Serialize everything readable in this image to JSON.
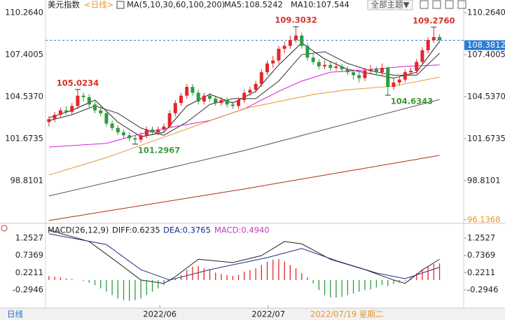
{
  "header": {
    "symbol": "美元指数",
    "period": "<日线>",
    "theme_button": "全部主题▼",
    "period_tab": "日线",
    "cursor_date": "2022/07/19 星期二"
  },
  "chart_data": [
    {
      "type": "candlestick",
      "up_color": "#e3262b",
      "down_color": "#2e9b3f",
      "legend_title": "MA(5,10,30,60,100,200)",
      "legend_values": [
        "MA5:108.5242",
        "MA10:107.544"
      ],
      "ylim": [
        95.94,
        110.65
      ],
      "yticks": [
        {
          "value": 110.264,
          "label": "110.2640"
        },
        107.4005,
        {
          "value": 104.537,
          "label": "104.5370"
        },
        101.6735,
        98.8101,
        {
          "value": 96.1368,
          "label": "96.1368",
          "color": "#e8952c"
        }
      ],
      "xlim": [
        -0.6,
        72.2
      ],
      "xticks": [
        {
          "value": 19.3,
          "label": "2022/06"
        },
        {
          "value": 38.2,
          "label": "2022/07"
        }
      ],
      "candles": [
        [
          102.8,
          103.2,
          102.5,
          103.0
        ],
        [
          103.0,
          103.5,
          102.8,
          103.3
        ],
        [
          103.3,
          103.8,
          103.1,
          103.6
        ],
        [
          103.6,
          103.9,
          103.3,
          103.5
        ],
        [
          103.5,
          104.1,
          103.3,
          103.9
        ],
        [
          103.9,
          105.0234,
          103.7,
          104.6
        ],
        [
          104.6,
          104.8,
          104.2,
          104.5
        ],
        [
          104.5,
          104.7,
          103.8,
          104.0
        ],
        [
          104.0,
          104.2,
          103.4,
          103.6
        ],
        [
          103.6,
          103.9,
          103.2,
          103.4
        ],
        [
          103.4,
          103.5,
          102.5,
          102.7
        ],
        [
          102.7,
          102.9,
          102.2,
          102.4
        ],
        [
          102.4,
          102.6,
          101.9,
          102.1
        ],
        [
          102.1,
          102.3,
          101.7,
          101.9
        ],
        [
          101.9,
          102.1,
          101.5,
          101.7
        ],
        [
          101.7,
          101.9,
          101.2967,
          101.6
        ],
        [
          101.6,
          102.1,
          101.4,
          101.9
        ],
        [
          101.9,
          102.5,
          101.7,
          102.3
        ],
        [
          102.3,
          102.5,
          101.9,
          102.1
        ],
        [
          102.1,
          102.5,
          101.9,
          102.3
        ],
        [
          102.3,
          102.7,
          102.1,
          102.5
        ],
        [
          102.5,
          103.6,
          102.4,
          103.4
        ],
        [
          103.4,
          104.3,
          103.2,
          104.1
        ],
        [
          104.1,
          104.8,
          103.9,
          104.6
        ],
        [
          104.6,
          105.4,
          104.4,
          105.2
        ],
        [
          105.2,
          105.4,
          104.6,
          104.8
        ],
        [
          104.8,
          105.0,
          104.0,
          104.2
        ],
        [
          104.2,
          104.8,
          104.0,
          104.6
        ],
        [
          104.6,
          104.8,
          104.2,
          104.4
        ],
        [
          104.4,
          104.6,
          103.9,
          104.1
        ],
        [
          104.1,
          104.5,
          103.9,
          104.3
        ],
        [
          104.3,
          104.5,
          103.8,
          104.0
        ],
        [
          104.0,
          104.2,
          103.7,
          103.9
        ],
        [
          103.9,
          104.5,
          103.7,
          104.3
        ],
        [
          104.3,
          105.0,
          104.1,
          104.8
        ],
        [
          104.8,
          105.2,
          104.6,
          105.0
        ],
        [
          105.0,
          105.6,
          104.8,
          105.4
        ],
        [
          105.4,
          106.4,
          105.2,
          106.2
        ],
        [
          106.2,
          107.0,
          106.0,
          106.8
        ],
        [
          106.8,
          107.3,
          106.5,
          107.0
        ],
        [
          107.0,
          108.0,
          106.8,
          107.8
        ],
        [
          107.8,
          108.3,
          107.5,
          108.0
        ],
        [
          108.0,
          108.7,
          107.8,
          108.4
        ],
        [
          108.4,
          109.3032,
          108.2,
          108.7
        ],
        [
          108.7,
          108.9,
          107.8,
          108.0
        ],
        [
          108.0,
          108.2,
          107.0,
          107.2
        ],
        [
          107.2,
          107.5,
          106.7,
          106.9
        ],
        [
          106.9,
          107.1,
          106.4,
          106.6
        ],
        [
          106.6,
          107.0,
          106.4,
          106.7
        ],
        [
          106.7,
          106.9,
          106.3,
          106.5
        ],
        [
          106.5,
          106.9,
          106.3,
          106.6
        ],
        [
          106.6,
          106.8,
          106.2,
          106.4
        ],
        [
          106.4,
          106.6,
          106.0,
          106.2
        ],
        [
          106.2,
          106.4,
          105.7,
          106.0
        ],
        [
          106.0,
          106.2,
          105.5,
          105.8
        ],
        [
          105.8,
          106.5,
          105.6,
          106.3
        ],
        [
          106.3,
          106.7,
          106.1,
          106.4
        ],
        [
          106.4,
          106.6,
          106.0,
          106.2
        ],
        [
          106.2,
          106.8,
          106.0,
          106.5
        ],
        [
          106.5,
          106.6,
          104.6343,
          105.2
        ],
        [
          105.2,
          105.8,
          105.0,
          105.5
        ],
        [
          105.5,
          105.9,
          105.3,
          105.7
        ],
        [
          105.7,
          106.4,
          105.5,
          106.2
        ],
        [
          106.2,
          106.5,
          106.0,
          106.3
        ],
        [
          106.3,
          107.1,
          106.1,
          106.9
        ],
        [
          106.9,
          107.9,
          106.7,
          107.7
        ],
        [
          107.7,
          108.6,
          107.5,
          108.4
        ],
        [
          108.4,
          109.276,
          108.2,
          108.6
        ],
        [
          108.6,
          108.8,
          108.2,
          108.3812
        ]
      ],
      "series": [
        {
          "color": "#222222",
          "x": [
            0,
            4,
            8,
            12,
            16,
            20,
            24,
            28,
            32,
            36,
            40,
            44,
            48,
            52,
            56,
            60,
            64,
            68
          ],
          "values": [
            103.1,
            103.6,
            104.3,
            102.8,
            101.8,
            102.1,
            103.9,
            104.7,
            104.1,
            104.9,
            106.7,
            108.2,
            107.1,
            106.4,
            106.1,
            105.8,
            106.2,
            108.3
          ]
        },
        {
          "color": "#333333",
          "x": [
            0,
            4,
            8,
            12,
            16,
            20,
            24,
            28,
            32,
            36,
            40,
            44,
            48,
            52,
            56,
            60,
            64,
            68
          ],
          "values": [
            102.9,
            103.3,
            103.9,
            103.4,
            102.4,
            101.9,
            102.8,
            104.0,
            104.4,
            104.4,
            105.6,
            107.4,
            107.6,
            106.8,
            106.3,
            106.0,
            106.0,
            107.5
          ]
        },
        {
          "color": "#d61ed6",
          "x": [
            0,
            10,
            16,
            22,
            28,
            34,
            40,
            44,
            49,
            55,
            62,
            68
          ],
          "values": [
            101.1,
            101.35,
            102.0,
            102.5,
            102.9,
            103.7,
            104.9,
            105.6,
            106.2,
            106.35,
            106.6,
            106.7
          ]
        },
        {
          "color": "#e8952c",
          "x": [
            0,
            10,
            22,
            34,
            40,
            46,
            52,
            60,
            68
          ],
          "values": [
            99.19,
            100.38,
            102.05,
            103.72,
            104.2,
            104.68,
            105.01,
            105.25,
            105.87
          ]
        },
        {
          "color": "#555555",
          "x": [
            0,
            34,
            68
          ],
          "values": [
            97.76,
            100.86,
            104.34
          ]
        },
        {
          "color": "#b02a1a",
          "x": [
            0,
            34,
            68
          ],
          "values": [
            96.09,
            98.24,
            100.53
          ]
        }
      ],
      "high_low_labels": [
        {
          "value": 109.3032,
          "label": "109.3032",
          "color": "#d9302a"
        },
        {
          "value": 109.276,
          "label": "109.2760",
          "color": "#d9302a"
        },
        {
          "value": 105.0234,
          "label": "105.0234",
          "color": "#d9302a"
        },
        {
          "value": 104.6343,
          "label": "104.6343",
          "color": "#3c9a3c"
        },
        {
          "value": 101.2967,
          "label": "101.2967",
          "color": "#3c9a3c"
        }
      ],
      "current_price": 108.3812,
      "current_color": "#2b7bd6"
    },
    {
      "type": "macd",
      "title": "MACD(26,12,9)",
      "legend_values": [
        {
          "text": "DIFF:0.6235",
          "color": "#222222"
        },
        {
          "text": "DEA:0.3765",
          "color": "#1a2a8a"
        },
        {
          "text": "MACD:0.4940",
          "color": "#c03cc0"
        }
      ],
      "ylim": [
        -0.7965,
        1.5036
      ],
      "yticks": [
        1.2527,
        0.7369,
        0.2211,
        -0.2946
      ],
      "xlim": [
        -0.6,
        72.2
      ],
      "up_color": "#e3262b",
      "down_color": "#2e9b3f",
      "histogram": [
        0.12,
        0.1,
        0.08,
        0.05,
        0.03,
        0.0,
        -0.03,
        -0.08,
        -0.15,
        -0.25,
        -0.35,
        -0.45,
        -0.55,
        -0.6,
        -0.62,
        -0.6,
        -0.55,
        -0.45,
        -0.35,
        -0.25,
        -0.15,
        -0.05,
        0.05,
        0.15,
        0.3,
        0.4,
        0.42,
        0.35,
        0.3,
        0.22,
        0.18,
        0.15,
        0.12,
        0.15,
        0.25,
        0.3,
        0.35,
        0.45,
        0.55,
        0.6,
        0.63,
        0.55,
        0.45,
        0.35,
        0.2,
        0.08,
        -0.1,
        -0.3,
        -0.45,
        -0.52,
        -0.53,
        -0.5,
        -0.45,
        -0.4,
        -0.35,
        -0.3,
        -0.28,
        -0.22,
        -0.15,
        -0.18,
        -0.12,
        -0.08,
        -0.03,
        0.08,
        0.2,
        0.32,
        0.42,
        0.48,
        0.494
      ],
      "series": [
        {
          "color": "#222222",
          "x": [
            0,
            7,
            12,
            16,
            20,
            22,
            26,
            32,
            37,
            41,
            44,
            49,
            55,
            60,
            62,
            65,
            68
          ],
          "values": [
            1.49,
            1.15,
            0.52,
            0.0,
            -0.1,
            0.1,
            0.62,
            0.52,
            0.73,
            1.15,
            1.08,
            0.62,
            0.31,
            0.0,
            -0.1,
            0.3,
            0.62
          ]
        },
        {
          "color": "#1a2a8a",
          "x": [
            0,
            10,
            16,
            21,
            28,
            38,
            44,
            50,
            57,
            62,
            68
          ],
          "values": [
            1.38,
            1.06,
            0.31,
            0.0,
            0.31,
            0.67,
            0.94,
            0.58,
            0.21,
            0.04,
            0.38
          ]
        }
      ]
    }
  ]
}
